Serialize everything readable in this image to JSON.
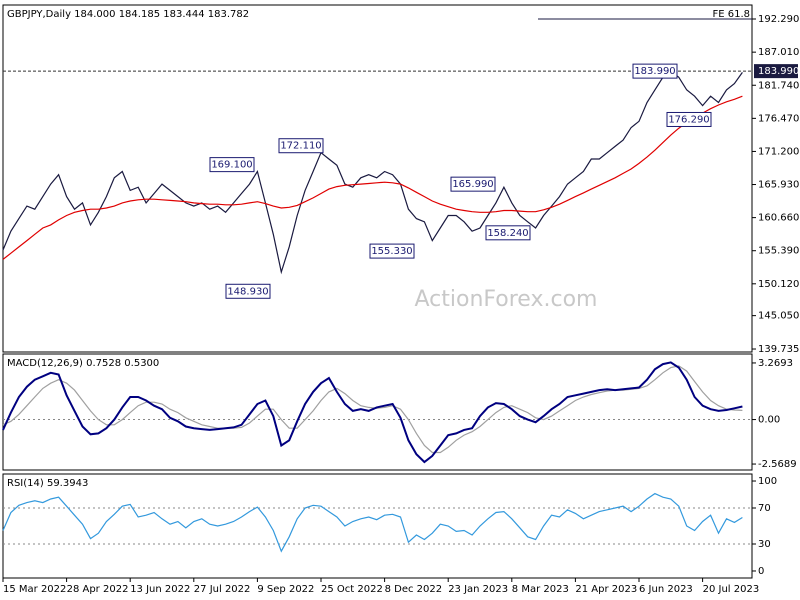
{
  "chart_data": [
    {
      "type": "line",
      "title": "GBPJPY,Daily  184.000 184.185 183.444 183.782",
      "watermark": "ActionForex.com",
      "ylim": [
        139.26,
        194.52
      ],
      "yticks": [
        {
          "value": 192.29,
          "label": "192.290"
        },
        {
          "value": 187.01,
          "label": "187.010"
        },
        {
          "value": 181.74,
          "label": "181.740"
        },
        {
          "value": 176.47,
          "label": "176.470"
        },
        {
          "value": 171.2,
          "label": "171.200"
        },
        {
          "value": 165.93,
          "label": "165.930"
        },
        {
          "value": 160.66,
          "label": "160.660"
        },
        {
          "value": 155.39,
          "label": "155.390"
        },
        {
          "value": 150.12,
          "label": "150.120"
        },
        {
          "value": 145.05,
          "label": "145.050"
        },
        {
          "value": 139.735,
          "label": "139.735"
        }
      ],
      "series": [
        {
          "color": "#1a1a40",
          "values": [
            155.5,
            158.5,
            160.5,
            162.5,
            162,
            164,
            166,
            167.5,
            164,
            162,
            163,
            159.5,
            161.5,
            164,
            167,
            168,
            165,
            165.5,
            163,
            164.5,
            166,
            165,
            164,
            163,
            162.5,
            163,
            162,
            162.5,
            161.5,
            163,
            164.5,
            166,
            168,
            163,
            158,
            152,
            156,
            161,
            165,
            168,
            171,
            170,
            169,
            166,
            165.5,
            167,
            167.5,
            167,
            168,
            167.5,
            166,
            162,
            160.5,
            160,
            157,
            159,
            161,
            161,
            160,
            158.5,
            159,
            161,
            163,
            165.5,
            163,
            161,
            160,
            159,
            161,
            162.5,
            164,
            166,
            167,
            168,
            170,
            170,
            171,
            172,
            173,
            175,
            176,
            179,
            181,
            183,
            184,
            183,
            181,
            180,
            178.5,
            180,
            179,
            181,
            182,
            183.78
          ]
        },
        {
          "color": "#e00000",
          "values": [
            154,
            155,
            156,
            157,
            158,
            159,
            159.5,
            160.3,
            161,
            161.5,
            161.8,
            162,
            162,
            162.2,
            162.5,
            163,
            163.3,
            163.5,
            163.6,
            163.6,
            163.5,
            163.4,
            163.3,
            163.2,
            163,
            162.9,
            162.8,
            162.8,
            162.7,
            162.7,
            162.8,
            163,
            163.2,
            162.9,
            162.5,
            162.2,
            162.3,
            162.6,
            163.2,
            163.8,
            164.5,
            165.2,
            165.6,
            165.8,
            165.9,
            166,
            166.1,
            166.2,
            166.3,
            166.2,
            166,
            165.4,
            164.7,
            164,
            163.3,
            162.8,
            162.4,
            162,
            161.8,
            161.6,
            161.5,
            161.5,
            161.6,
            161.8,
            161.8,
            161.7,
            161.6,
            161.6,
            161.9,
            162.3,
            162.8,
            163.4,
            164,
            164.6,
            165.2,
            165.8,
            166.4,
            167,
            167.7,
            168.4,
            169.3,
            170.3,
            171.4,
            172.6,
            173.8,
            174.9,
            175.8,
            176.6,
            177.3,
            178,
            178.6,
            179.1,
            179.5,
            180
          ]
        }
      ],
      "annotations": [
        {
          "label": "183.990",
          "value": 183.99
        },
        {
          "label": "169.100",
          "value": 169.1
        },
        {
          "label": "172.110",
          "value": 172.11
        },
        {
          "label": "148.930",
          "value": 148.93
        },
        {
          "label": "165.990",
          "value": 165.99
        },
        {
          "label": "155.330",
          "value": 155.33
        },
        {
          "label": "158.240",
          "value": 158.24
        },
        {
          "label": "176.290",
          "value": 176.29
        }
      ],
      "last_price": {
        "label": "183.990",
        "value": 183.99
      },
      "fe": {
        "label": "FE 61.8",
        "value": 192.29
      }
    },
    {
      "type": "line",
      "title": "MACD(12,26,9) 0.7528 0.5300",
      "ylim": [
        -2.913,
        3.786
      ],
      "yticks": [
        3.2693,
        {
          "value": 0,
          "label": "0.00"
        },
        -2.5689
      ],
      "levels": [
        0
      ],
      "series": [
        {
          "color": "#a0a0a0",
          "values": [
            -0.3,
            -0.1,
            0.3,
            0.8,
            1.3,
            1.8,
            2.1,
            2.3,
            2.1,
            1.7,
            1.1,
            0.5,
            0,
            -0.3,
            -0.3,
            0,
            0.4,
            0.8,
            1.0,
            1.0,
            0.9,
            0.6,
            0.4,
            0.1,
            -0.1,
            -0.3,
            -0.4,
            -0.5,
            -0.5,
            -0.5,
            -0.45,
            -0.2,
            0.2,
            0.6,
            0.6,
            0,
            -0.5,
            -0.5,
            0,
            0.5,
            1.1,
            1.6,
            1.8,
            1.5,
            1.1,
            0.8,
            0.7,
            0.65,
            0.7,
            0.8,
            0.6,
            0,
            -0.8,
            -1.5,
            -1.9,
            -1.9,
            -1.6,
            -1.2,
            -0.9,
            -0.7,
            -0.4,
            0,
            0.4,
            0.7,
            0.8,
            0.6,
            0.4,
            0.1,
            0,
            0.2,
            0.5,
            0.8,
            1.1,
            1.3,
            1.45,
            1.55,
            1.65,
            1.7,
            1.7,
            1.75,
            1.8,
            1.95,
            2.3,
            2.7,
            3.0,
            3.1,
            2.8,
            2.2,
            1.6,
            1.1,
            0.8,
            0.6,
            0.55,
            0.53
          ]
        },
        {
          "color": "#000080",
          "values": [
            -0.6,
            0.4,
            1.3,
            1.9,
            2.3,
            2.5,
            2.7,
            2.6,
            1.4,
            0.5,
            -0.4,
            -0.85,
            -0.8,
            -0.5,
            0,
            0.7,
            1.3,
            1.3,
            1.1,
            0.8,
            0.6,
            0.1,
            -0.1,
            -0.4,
            -0.5,
            -0.55,
            -0.6,
            -0.55,
            -0.5,
            -0.45,
            -0.3,
            0.3,
            0.9,
            1.1,
            0.2,
            -1.5,
            -1.2,
            -0.1,
            0.9,
            1.6,
            2.1,
            2.4,
            1.6,
            0.9,
            0.5,
            0.6,
            0.5,
            0.7,
            0.8,
            0.9,
            0.1,
            -1.2,
            -2.0,
            -2.45,
            -2.1,
            -1.5,
            -0.9,
            -0.8,
            -0.6,
            -0.5,
            0.2,
            0.7,
            0.95,
            0.9,
            0.6,
            0.2,
            0,
            -0.15,
            0.2,
            0.6,
            0.9,
            1.3,
            1.4,
            1.5,
            1.6,
            1.7,
            1.75,
            1.7,
            1.75,
            1.8,
            1.85,
            2.3,
            2.9,
            3.2,
            3.3,
            3.0,
            2.3,
            1.3,
            0.8,
            0.6,
            0.5,
            0.55,
            0.65,
            0.7528
          ]
        }
      ]
    },
    {
      "type": "line",
      "title": "RSI(14) 59.3943",
      "ylim": [
        -7.8,
        107.8
      ],
      "yticks": [
        100,
        70,
        30,
        0
      ],
      "levels": [
        70,
        30
      ],
      "series": [
        {
          "color": "#3399dd",
          "values": [
            45,
            65,
            73,
            76,
            78,
            76,
            80,
            82,
            72,
            62,
            52,
            36,
            42,
            55,
            63,
            72,
            74,
            60,
            62,
            65,
            58,
            52,
            55,
            48,
            55,
            58,
            52,
            50,
            52,
            55,
            60,
            66,
            71,
            60,
            45,
            22,
            38,
            58,
            70,
            73,
            72,
            66,
            60,
            50,
            55,
            58,
            60,
            57,
            62,
            63,
            60,
            32,
            40,
            35,
            42,
            52,
            50,
            44,
            45,
            40,
            50,
            58,
            65,
            66,
            58,
            48,
            38,
            35,
            50,
            62,
            60,
            68,
            64,
            58,
            62,
            66,
            68,
            70,
            72,
            66,
            72,
            80,
            86,
            82,
            80,
            72,
            50,
            45,
            55,
            62,
            42,
            58,
            54,
            59.3943
          ]
        }
      ],
      "categories": [
        "15 Mar 2022",
        null,
        null,
        null,
        null,
        null,
        null,
        null,
        "28 Apr 2022",
        null,
        null,
        null,
        null,
        null,
        null,
        null,
        "13 Jun 2022",
        null,
        null,
        null,
        null,
        null,
        null,
        null,
        "27 Jul 2022",
        null,
        null,
        null,
        null,
        null,
        null,
        null,
        "9 Sep 2022",
        null,
        null,
        null,
        null,
        null,
        null,
        null,
        "25 Oct 2022",
        null,
        null,
        null,
        null,
        null,
        null,
        null,
        "8 Dec 2022",
        null,
        null,
        null,
        null,
        null,
        null,
        null,
        "23 Jan 2023",
        null,
        null,
        null,
        null,
        null,
        null,
        null,
        "8 Mar 2023",
        null,
        null,
        null,
        null,
        null,
        null,
        null,
        "21 Apr 2023",
        null,
        null,
        null,
        null,
        null,
        null,
        null,
        "6 Jun 2023",
        null,
        null,
        null,
        null,
        null,
        null,
        null,
        "20 Jul 2023",
        null,
        null,
        null,
        null,
        null
      ]
    }
  ]
}
